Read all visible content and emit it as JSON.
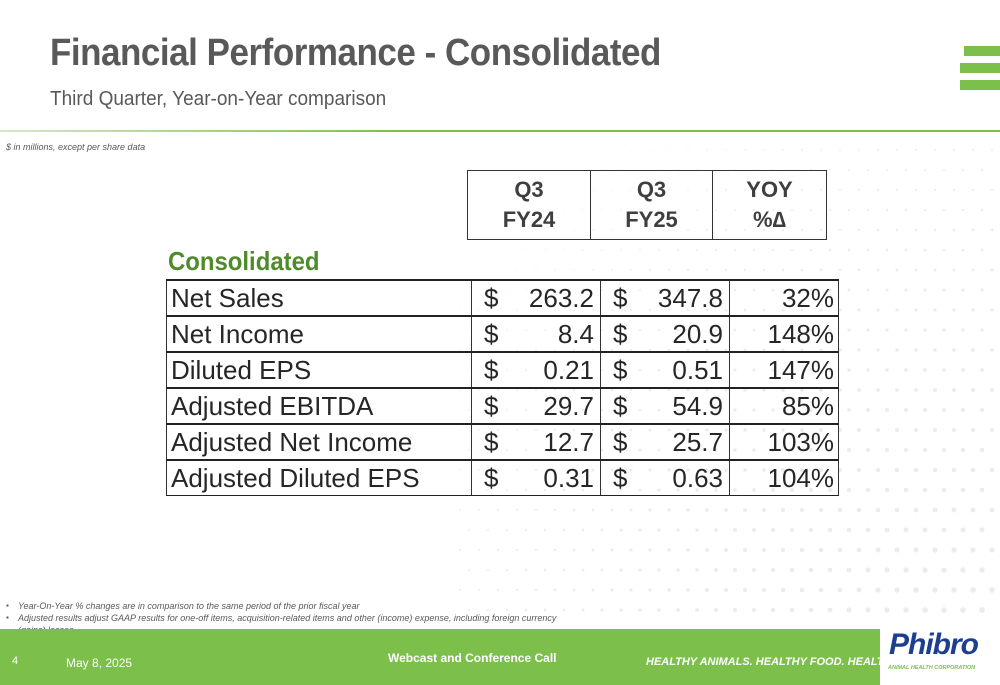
{
  "slide": {
    "title": "Financial Performance - Consolidated",
    "subtitle": "Third Quarter, Year-on-Year comparison",
    "units_note": "$ in millions, except per share data"
  },
  "table": {
    "columns": [
      {
        "line1": "Q3",
        "line2": "FY24"
      },
      {
        "line1": "Q3",
        "line2": "FY25"
      },
      {
        "line1": "YOY",
        "line2": "%∆"
      }
    ],
    "section_label": "Consolidated",
    "rows": [
      {
        "label": "Net Sales",
        "cur1": "$",
        "v1": "263.2",
        "cur2": "$",
        "v2": "347.8",
        "yoy": "32%"
      },
      {
        "label": "Net Income",
        "cur1": "$",
        "v1": "8.4",
        "cur2": "$",
        "v2": "20.9",
        "yoy": "148%"
      },
      {
        "label": "Diluted EPS",
        "cur1": "$",
        "v1": "0.21",
        "cur2": "$",
        "v2": "0.51",
        "yoy": "147%"
      },
      {
        "label": "Adjusted EBITDA",
        "cur1": "$",
        "v1": "29.7",
        "cur2": "$",
        "v2": "54.9",
        "yoy": "85%"
      },
      {
        "label": "Adjusted Net Income",
        "cur1": "$",
        "v1": "12.7",
        "cur2": "$",
        "v2": "25.7",
        "yoy": "103%"
      },
      {
        "label": "Adjusted Diluted EPS",
        "cur1": "$",
        "v1": "0.31",
        "cur2": "$",
        "v2": "0.63",
        "yoy": "104%"
      }
    ]
  },
  "footnotes": [
    "Year-On-Year % changes are in comparison to the same period of the prior fiscal year",
    "Adjusted results adjust GAAP results for one-off items, acquisition-related items and other (income) expense, including foreign currency (gains) losses."
  ],
  "footer": {
    "page_number": "4",
    "date": "May 8, 2025",
    "event": "Webcast and Conference Call",
    "tagline": "HEALTHY ANIMALS. HEALTHY FOOD. HEALTHY WORLD.®"
  },
  "logo": {
    "name": "Phibro",
    "subtitle": "ANIMAL HEALTH CORPORATION"
  },
  "colors": {
    "brand_green": "#7cc04b",
    "section_green": "#4f8a2b",
    "text_gray": "#595959",
    "logo_blue": "#1d3f8f"
  }
}
